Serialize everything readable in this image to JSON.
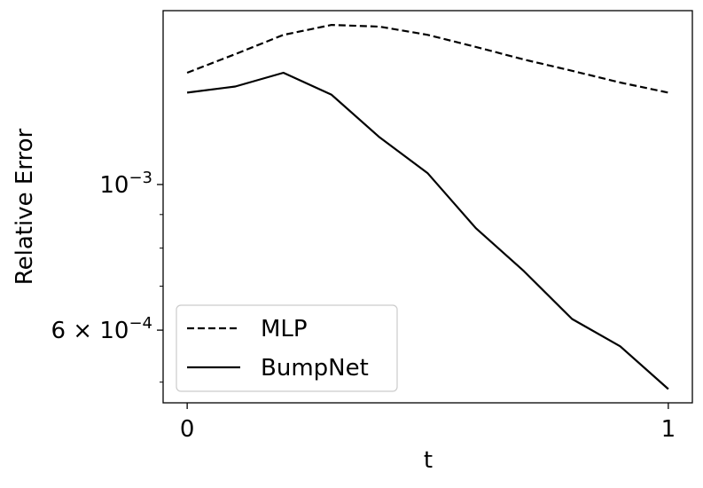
{
  "chart_data": {
    "type": "line",
    "title": "",
    "xlabel": "t",
    "ylabel": "Relative Error",
    "x": [
      0.0,
      0.1,
      0.2,
      0.3,
      0.4,
      0.5,
      0.6,
      0.7,
      0.8,
      0.9,
      1.0
    ],
    "xlim": [
      -0.05,
      1.05
    ],
    "ylim": [
      0.000465,
      0.00184
    ],
    "yscale": "log",
    "grid": false,
    "legend_position": "lower-left",
    "x_ticks": [
      {
        "value": 0,
        "label": "0"
      },
      {
        "value": 1,
        "label": "1"
      }
    ],
    "y_ticks": [
      {
        "value": 0.001,
        "base": "10",
        "exponent": "−3",
        "mantissa": ""
      },
      {
        "value": 0.0006,
        "base": "10",
        "exponent": "−4",
        "mantissa": "6 × "
      }
    ],
    "y_minor_ticks": [
      0.0005,
      0.0007,
      0.0008,
      0.0009
    ],
    "series": [
      {
        "name": "MLP",
        "style": "dashed",
        "color": "#000000",
        "values": [
          0.00148,
          0.00158,
          0.00169,
          0.00175,
          0.00174,
          0.00169,
          0.00162,
          0.00155,
          0.00149,
          0.00143,
          0.00138
        ]
      },
      {
        "name": "BumpNet",
        "style": "solid",
        "color": "#000000",
        "values": [
          0.00138,
          0.00141,
          0.00148,
          0.00137,
          0.00118,
          0.00104,
          0.000858,
          0.000738,
          0.000624,
          0.000567,
          0.000488
        ]
      }
    ]
  }
}
